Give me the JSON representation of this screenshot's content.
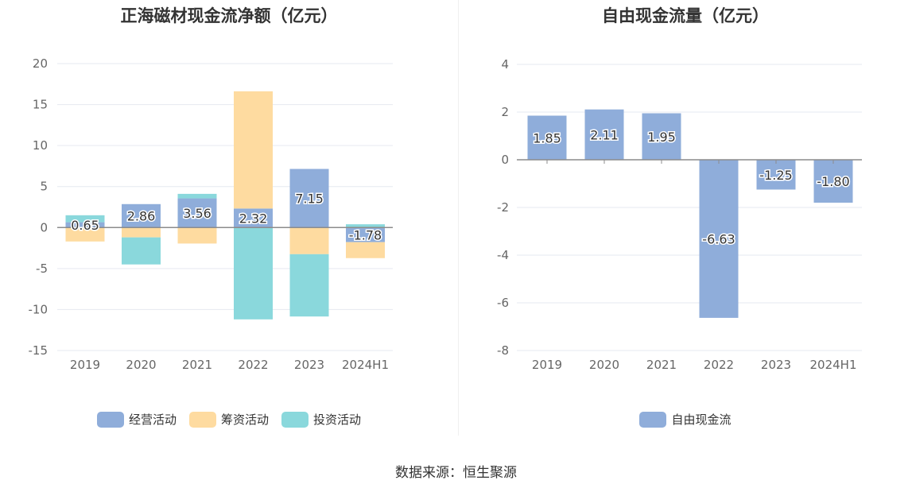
{
  "charts": [
    {
      "title": "正海磁材现金流净额（亿元）",
      "chart_data": {
        "type": "bar",
        "stacked": true,
        "categories": [
          "2019",
          "2020",
          "2021",
          "2022",
          "2023",
          "2024H1"
        ],
        "ylim": [
          -15,
          20
        ],
        "yticks": [
          20,
          15,
          10,
          5,
          0,
          -5,
          -10,
          -15
        ],
        "ytick_labels": [
          "20",
          "15",
          "10",
          "5",
          "0",
          "-5",
          "-10",
          "-15"
        ],
        "series": [
          {
            "name": "经营活动",
            "color": "#8fadda",
            "values": [
              0.65,
              2.86,
              3.56,
              2.32,
              7.15,
              -1.78
            ],
            "labels": [
              "0.65",
              "2.86",
              "3.56",
              "2.32",
              "7.15",
              "-1.78"
            ]
          },
          {
            "name": "筹资活动",
            "color": "#fedba0",
            "values": [
              -1.7,
              -1.2,
              -1.95,
              14.3,
              -3.25,
              -1.95
            ]
          },
          {
            "name": "投资活动",
            "color": "#8ad8dc",
            "values": [
              0.85,
              -3.3,
              0.55,
              -11.2,
              -7.6,
              0.4
            ]
          }
        ],
        "legend": [
          "经营活动",
          "筹资活动",
          "投资活动"
        ],
        "legend_position": "bottom"
      }
    },
    {
      "title": "自由现金流量（亿元）",
      "chart_data": {
        "type": "bar",
        "categories": [
          "2019",
          "2020",
          "2021",
          "2022",
          "2023",
          "2024H1"
        ],
        "ylim": [
          -8,
          4
        ],
        "yticks": [
          4,
          2,
          0,
          -2,
          -4,
          -6,
          -8
        ],
        "ytick_labels": [
          "4",
          "2",
          "0",
          "-2",
          "-4",
          "-6",
          "-8"
        ],
        "series": [
          {
            "name": "自由现金流",
            "color": "#8fadda",
            "values": [
              1.85,
              2.11,
              1.95,
              -6.63,
              -1.25,
              -1.8
            ],
            "labels": [
              "1.85",
              "2.11",
              "1.95",
              "-6.63",
              "-1.25",
              "-1.80"
            ]
          }
        ],
        "legend": [
          "自由现金流"
        ],
        "legend_position": "bottom"
      }
    }
  ],
  "source": "数据来源：恒生聚源"
}
